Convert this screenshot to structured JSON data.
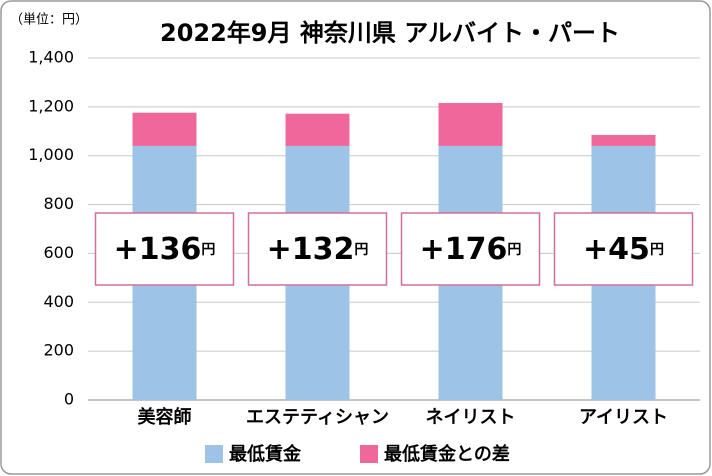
{
  "chart_data": {
    "type": "stacked_bar",
    "title": "2022年9月 神奈川県 アルバイト・パート",
    "unit_label": "（単位：円）",
    "categories": [
      "美容師",
      "エステティシャン",
      "ネイリスト",
      "アイリスト"
    ],
    "series": [
      {
        "name": "最低賃金",
        "color": "#9dc3e6",
        "values": [
          1040,
          1040,
          1040,
          1040
        ]
      },
      {
        "name": "最低賃金との差",
        "color": "#f0689b",
        "values": [
          136,
          132,
          176,
          45
        ],
        "value_labels": [
          "+136円",
          "+132円",
          "+176円",
          "+45円"
        ]
      }
    ],
    "ylim": [
      0,
      1400
    ],
    "yticks": [
      0,
      200,
      400,
      600,
      800,
      {
        "value": 1000,
        "label": "1,000"
      },
      {
        "value": 1200,
        "label": "1,200"
      },
      {
        "value": 1400,
        "label": "1,400"
      }
    ],
    "grid": true
  }
}
